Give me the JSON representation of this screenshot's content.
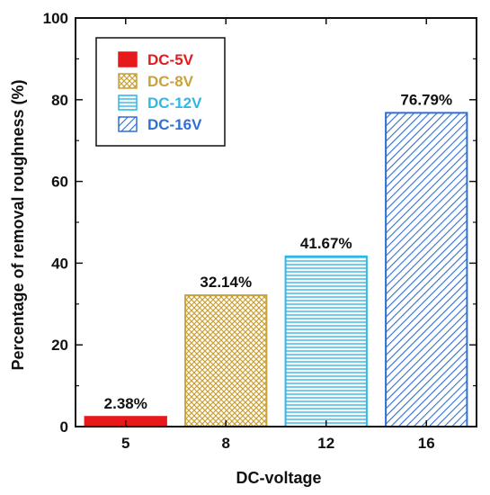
{
  "chart_data": {
    "type": "bar",
    "categories": [
      "5",
      "8",
      "12",
      "16"
    ],
    "values": [
      2.38,
      32.14,
      41.67,
      76.79
    ],
    "data_labels": [
      "2.38%",
      "32.14%",
      "41.67%",
      "76.79%"
    ],
    "series_names": [
      "DC-5V",
      "DC-8V",
      "DC-12V",
      "DC-16V"
    ],
    "colors": [
      "#e8191b",
      "#c9a23a",
      "#2fb8e6",
      "#2f6fd6"
    ],
    "patterns": [
      "solid",
      "crosshatch",
      "horizontal",
      "diagonal"
    ],
    "xlabel": "DC-voltage",
    "ylabel": "Percentage of removal roughness (%)",
    "ylim": [
      0,
      100
    ],
    "yticks": [
      "0",
      "20",
      "40",
      "60",
      "80",
      "100"
    ],
    "grid": false,
    "legend_position": "top-left"
  }
}
